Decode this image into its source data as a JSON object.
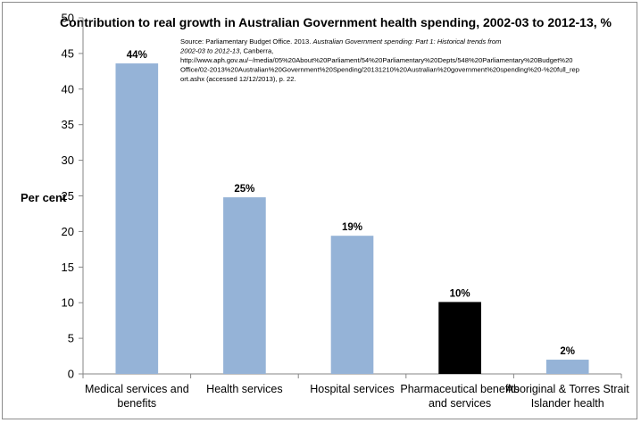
{
  "chart_data": {
    "type": "bar",
    "title": "Contribution to real growth in Australian Government health spending, 2002-03 to 2012-13, %",
    "source_note": {
      "prefix": "Source: Parliamentary Budget Office. 2013. ",
      "italic": "Australian Government spending: Part 1: Historical trends from 2002-03 to 2012-13",
      "rest": ", Canberra, http://www.aph.gov.au/~/media/05%20About%20Parliament/54%20Parliamentary%20Depts/548%20Parliamentary%20Budget%20Office/02-2013%20Australian%20Government%20Spending/20131210%20Australian%20government%20spending%20-%20full_report.ashx (accessed 12/12/2013), p. 22."
    },
    "ylabel": "Per cent",
    "xlabel": "",
    "ylim": [
      0,
      50
    ],
    "yticks": [
      "0",
      "5",
      "10",
      "15",
      "20",
      "25",
      "30",
      "35",
      "40",
      "45",
      "50"
    ],
    "grid": false,
    "categories": [
      [
        "Medical services and",
        "benefits"
      ],
      [
        "Health services"
      ],
      [
        "Hospital services"
      ],
      [
        "Pharmaceutical benefits",
        "and services"
      ],
      [
        "Aboriginal & Torres Strait",
        "Islander health"
      ]
    ],
    "values": [
      43.6,
      24.8,
      19.4,
      10.1,
      2.0
    ],
    "data_labels": [
      "44%",
      "25%",
      "19%",
      "10%",
      "2%"
    ],
    "bar_colors": [
      "#95b3d7",
      "#95b3d7",
      "#95b3d7",
      "#000000",
      "#95b3d7"
    ]
  }
}
